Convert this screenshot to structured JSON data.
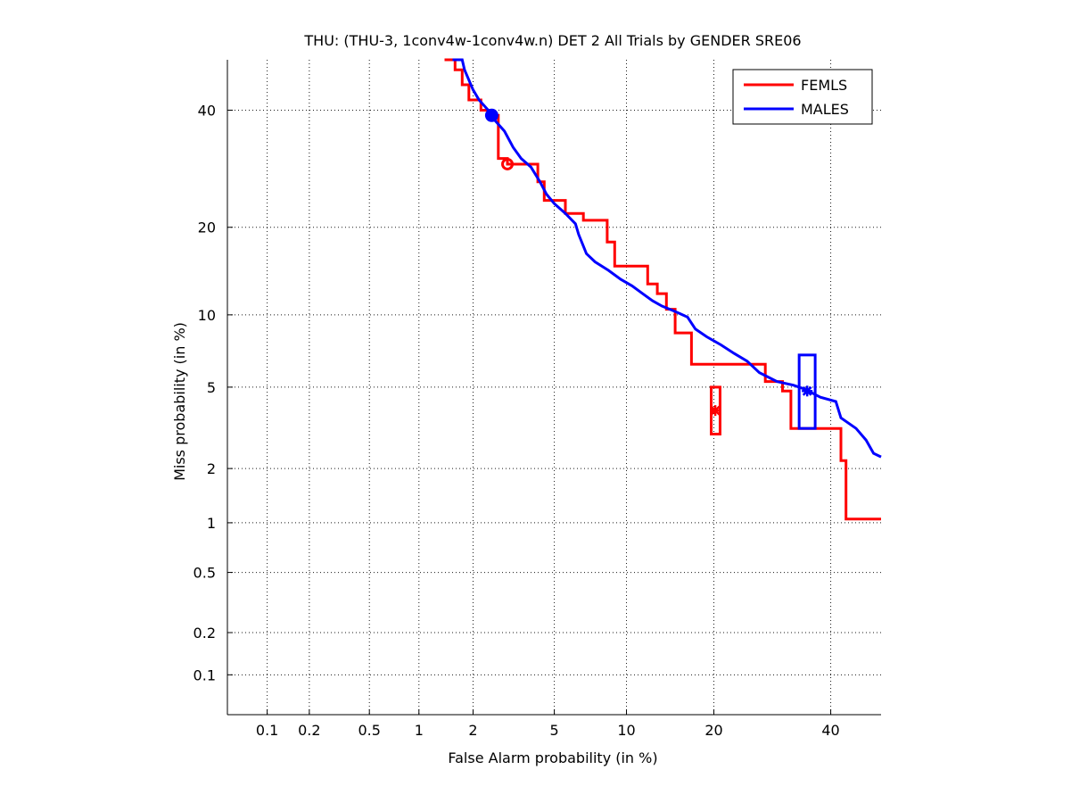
{
  "chart_data": {
    "type": "line",
    "title": "THU: (THU-3, 1conv4w-1conv4w.n) DET 2 All Trials by GENDER SRE06",
    "xlabel": "False Alarm probability (in %)",
    "ylabel": "Miss probability (in %)",
    "axis_scale": "normal-deviate (probit)",
    "xlim": [
      0.05,
      50
    ],
    "ylim": [
      0.05,
      50
    ],
    "x_ticks": [
      0.1,
      0.2,
      0.5,
      1,
      2,
      5,
      10,
      20,
      40
    ],
    "x_tick_labels": [
      "0.1",
      "0.2",
      "0.5",
      "1",
      "2",
      "5",
      "10",
      "20",
      "40"
    ],
    "y_ticks": [
      0.1,
      0.2,
      0.5,
      1,
      2,
      5,
      10,
      20,
      40
    ],
    "y_tick_labels": [
      "0.1",
      "0.2",
      "0.5",
      "1",
      "2",
      "5",
      "10",
      "20",
      "40"
    ],
    "grid": true,
    "legend_position": "top-right",
    "series": [
      {
        "name": "FEMLS",
        "color": "#ff0000",
        "points": [
          [
            1.4,
            50
          ],
          [
            1.6,
            50
          ],
          [
            1.6,
            48
          ],
          [
            1.75,
            48
          ],
          [
            1.75,
            45
          ],
          [
            1.9,
            45
          ],
          [
            1.9,
            42
          ],
          [
            2.2,
            42
          ],
          [
            2.2,
            40
          ],
          [
            2.4,
            40
          ],
          [
            2.4,
            39
          ],
          [
            2.7,
            39
          ],
          [
            2.7,
            31
          ],
          [
            3.0,
            31
          ],
          [
            3.0,
            30
          ],
          [
            4.2,
            30
          ],
          [
            4.2,
            27
          ],
          [
            4.5,
            27
          ],
          [
            4.5,
            24
          ],
          [
            5.6,
            24
          ],
          [
            5.6,
            22
          ],
          [
            6.7,
            22
          ],
          [
            6.7,
            21
          ],
          [
            8.4,
            21
          ],
          [
            8.4,
            18
          ],
          [
            9.0,
            18
          ],
          [
            9.0,
            15
          ],
          [
            12.0,
            15
          ],
          [
            12.0,
            13
          ],
          [
            13.0,
            13
          ],
          [
            13.0,
            12
          ],
          [
            14.0,
            12
          ],
          [
            14.0,
            10.5
          ],
          [
            15.0,
            10.5
          ],
          [
            15.0,
            8.5
          ],
          [
            17.0,
            8.5
          ],
          [
            17.0,
            6.3
          ],
          [
            28.0,
            6.3
          ],
          [
            28.0,
            5.3
          ],
          [
            31.0,
            5.3
          ],
          [
            31.0,
            4.8
          ],
          [
            32.5,
            4.8
          ],
          [
            32.5,
            3.2
          ],
          [
            42.0,
            3.2
          ],
          [
            42.0,
            2.2
          ],
          [
            43.0,
            2.2
          ],
          [
            43.0,
            1.05
          ],
          [
            50,
            1.05
          ]
        ],
        "operating_point": {
          "x": 3.0,
          "y": 30,
          "marker": "circle"
        },
        "confidence_box": {
          "x": 20.2,
          "y": 3.9,
          "x_range": [
            20.0,
            20.5
          ],
          "y_range": [
            3.0,
            5.0
          ],
          "marker": "star"
        }
      },
      {
        "name": "MALES",
        "color": "#0000ff",
        "points": [
          [
            1.55,
            50
          ],
          [
            1.75,
            50
          ],
          [
            1.8,
            48
          ],
          [
            2.0,
            44
          ],
          [
            2.15,
            42
          ],
          [
            2.4,
            40
          ],
          [
            2.6,
            38
          ],
          [
            2.9,
            36
          ],
          [
            3.2,
            33
          ],
          [
            3.5,
            31
          ],
          [
            3.9,
            29.5
          ],
          [
            4.3,
            27
          ],
          [
            4.6,
            25
          ],
          [
            5.0,
            23.5
          ],
          [
            5.6,
            22
          ],
          [
            6.2,
            20.5
          ],
          [
            6.4,
            19
          ],
          [
            6.9,
            16.5
          ],
          [
            7.5,
            15.5
          ],
          [
            8.5,
            14.5
          ],
          [
            9.5,
            13.5
          ],
          [
            10.5,
            12.8
          ],
          [
            11.5,
            12
          ],
          [
            12.5,
            11.3
          ],
          [
            13.5,
            10.8
          ],
          [
            15.0,
            10.3
          ],
          [
            16.5,
            9.8
          ],
          [
            17.5,
            8.8
          ],
          [
            19.0,
            8.2
          ],
          [
            21.0,
            7.6
          ],
          [
            23.0,
            7.0
          ],
          [
            25.0,
            6.5
          ],
          [
            27.0,
            5.8
          ],
          [
            30.0,
            5.3
          ],
          [
            33.0,
            5.1
          ],
          [
            35.0,
            4.9
          ],
          [
            38.0,
            4.5
          ],
          [
            41.0,
            4.3
          ],
          [
            42.0,
            3.6
          ],
          [
            45.0,
            3.2
          ],
          [
            47.0,
            2.8
          ],
          [
            48.5,
            2.4
          ],
          [
            50,
            2.3
          ]
        ],
        "operating_point": {
          "x": 2.5,
          "y": 39,
          "marker": "circle-filled"
        },
        "confidence_box": {
          "x": 35.5,
          "y": 4.8,
          "x_range": [
            34.5,
            36.5
          ],
          "y_range": [
            3.2,
            6.9
          ],
          "marker": "star"
        }
      }
    ]
  }
}
